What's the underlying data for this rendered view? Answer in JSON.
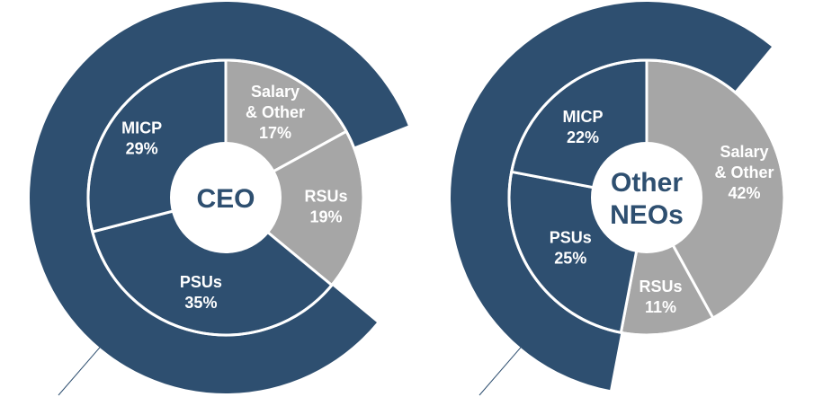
{
  "colors": {
    "dark": "#2e4f70",
    "gray": "#a6a6a6",
    "stroke": "#ffffff",
    "line": "#2e4f70",
    "center_text": "#2e4f70"
  },
  "chart_data": [
    {
      "type": "pie",
      "center_label": "CEO",
      "slices": [
        {
          "label_lines": [
            "Salary",
            "& Other",
            "17%"
          ],
          "name": "Salary & Other",
          "value": 17,
          "color": "gray"
        },
        {
          "label_lines": [
            "RSUs",
            "19%"
          ],
          "name": "RSUs",
          "value": 19,
          "color": "gray"
        },
        {
          "label_lines": [
            "PSUs",
            "35%"
          ],
          "name": "PSUs",
          "value": 35,
          "color": "dark"
        },
        {
          "label_lines": [
            "MICP",
            "29%"
          ],
          "name": "MICP",
          "value": 29,
          "color": "dark"
        }
      ],
      "outer_ring_value": 83
    },
    {
      "type": "pie",
      "center_label_lines": [
        "Other",
        "NEOs"
      ],
      "slices": [
        {
          "label_lines": [
            "Salary",
            "& Other",
            "42%"
          ],
          "name": "Salary & Other",
          "value": 42,
          "color": "gray"
        },
        {
          "label_lines": [
            "RSUs",
            "11%"
          ],
          "name": "RSUs",
          "value": 11,
          "color": "gray"
        },
        {
          "label_lines": [
            "PSUs",
            "25%"
          ],
          "name": "PSUs",
          "value": 25,
          "color": "dark"
        },
        {
          "label_lines": [
            "MICP",
            "22%"
          ],
          "name": "MICP",
          "value": 22,
          "color": "dark"
        }
      ],
      "outer_ring_value": 58
    }
  ]
}
